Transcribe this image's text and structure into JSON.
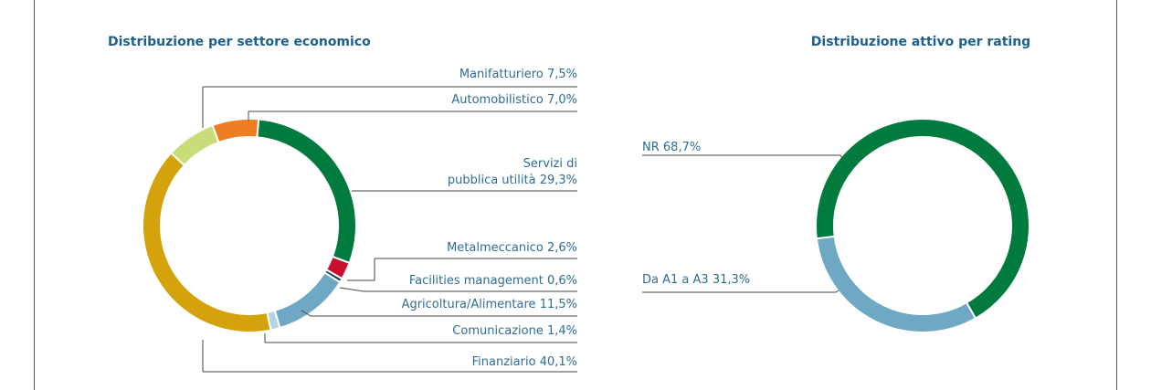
{
  "chart_data": [
    {
      "type": "donut",
      "title": "Distribuzione per settore economico",
      "categories": [
        "Manifatturiero",
        "Automobilistico",
        "Servizi di\npubblica utilità",
        "Metalmeccanico",
        "Facilities management",
        "Agricoltura/Alimentare",
        "Comunicazione",
        "Finanziario"
      ],
      "values": [
        7.5,
        7.0,
        29.3,
        2.6,
        0.6,
        11.5,
        1.4,
        40.1
      ],
      "value_labels": [
        "7,5%",
        "7,0%",
        "29,3%",
        "2,6%",
        "0,6%",
        "11,5%",
        "1,4%",
        "40,1%"
      ],
      "colors": [
        "#c9dc7a",
        "#ef7d22",
        "#007a3d",
        "#c8102e",
        "#1d3c5a",
        "#6fa8c4",
        "#b5d3e2",
        "#d4a20a"
      ]
    },
    {
      "type": "donut",
      "title": "Distribuzione attivo per rating",
      "categories": [
        "NR",
        "Da A1 a A3"
      ],
      "values": [
        68.7,
        31.3
      ],
      "value_labels": [
        "68,7%",
        "31,3%"
      ],
      "colors": [
        "#007a3d",
        "#6fa8c4"
      ]
    }
  ]
}
